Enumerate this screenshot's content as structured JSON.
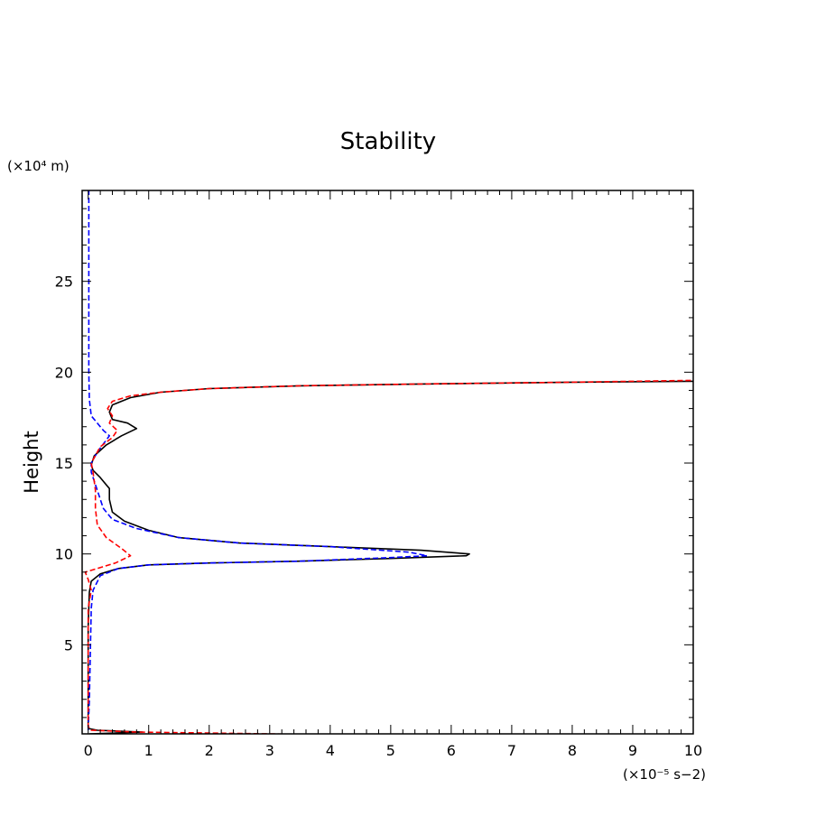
{
  "chart_data": {
    "type": "line",
    "title": "Stability",
    "ylabel": "Height",
    "xlabel": "",
    "x_units": "(×10⁻⁵ s−2)",
    "y_units": "(×10⁴ m)",
    "xlim": [
      -0.1,
      10
    ],
    "ylim": [
      0.1,
      30
    ],
    "x_ticks": [
      "0",
      "1",
      "2",
      "3",
      "4",
      "5",
      "6",
      "7",
      "8",
      "9",
      "10"
    ],
    "y_ticks": [
      "5",
      "10",
      "15",
      "20",
      "25"
    ],
    "grid": false,
    "legend": "none",
    "series": [
      {
        "color": "#000000",
        "dash": "solid",
        "points": [
          [
            0.02,
            0.1
          ],
          [
            0.9,
            0.2
          ],
          [
            0.15,
            0.3
          ],
          [
            0.0,
            0.4
          ],
          [
            0.0,
            6.0
          ],
          [
            0.02,
            7.9
          ],
          [
            0.05,
            8.5
          ],
          [
            0.2,
            8.9
          ],
          [
            0.5,
            9.2
          ],
          [
            1.0,
            9.4
          ],
          [
            2.0,
            9.5
          ],
          [
            3.5,
            9.6
          ],
          [
            5.0,
            9.75
          ],
          [
            6.25,
            9.9
          ],
          [
            6.3,
            10.0
          ],
          [
            5.5,
            10.2
          ],
          [
            4.0,
            10.4
          ],
          [
            2.5,
            10.6
          ],
          [
            1.5,
            10.9
          ],
          [
            1.0,
            11.3
          ],
          [
            0.6,
            11.8
          ],
          [
            0.4,
            12.3
          ],
          [
            0.35,
            13.0
          ],
          [
            0.35,
            13.6
          ],
          [
            0.3,
            13.8
          ],
          [
            0.2,
            14.2
          ],
          [
            0.08,
            14.6
          ],
          [
            0.05,
            14.9
          ],
          [
            0.1,
            15.4
          ],
          [
            0.3,
            16.0
          ],
          [
            0.55,
            16.5
          ],
          [
            0.8,
            16.9
          ],
          [
            0.65,
            17.2
          ],
          [
            0.4,
            17.4
          ],
          [
            0.35,
            17.8
          ],
          [
            0.4,
            18.2
          ],
          [
            0.7,
            18.6
          ],
          [
            1.2,
            18.9
          ],
          [
            2.0,
            19.1
          ],
          [
            3.5,
            19.25
          ],
          [
            5.5,
            19.35
          ],
          [
            8.0,
            19.45
          ],
          [
            10.0,
            19.5
          ]
        ]
      },
      {
        "color": "#0000ff",
        "dash": "dashed",
        "points": [
          [
            0.0,
            0.3
          ],
          [
            0.02,
            2.0
          ],
          [
            0.05,
            7.0
          ],
          [
            0.08,
            8.0
          ],
          [
            0.2,
            8.8
          ],
          [
            0.5,
            9.2
          ],
          [
            1.0,
            9.4
          ],
          [
            2.0,
            9.5
          ],
          [
            3.5,
            9.6
          ],
          [
            5.0,
            9.8
          ],
          [
            5.6,
            9.9
          ],
          [
            5.3,
            10.1
          ],
          [
            4.0,
            10.4
          ],
          [
            2.5,
            10.6
          ],
          [
            1.5,
            10.9
          ],
          [
            0.8,
            11.4
          ],
          [
            0.4,
            11.9
          ],
          [
            0.25,
            12.5
          ],
          [
            0.15,
            13.5
          ],
          [
            0.05,
            14.5
          ],
          [
            0.05,
            15.0
          ],
          [
            0.15,
            15.6
          ],
          [
            0.35,
            16.5
          ],
          [
            0.25,
            16.8
          ],
          [
            0.15,
            17.2
          ],
          [
            0.05,
            17.6
          ],
          [
            0.02,
            18.5
          ],
          [
            0.01,
            20.0
          ],
          [
            0.01,
            30.0
          ]
        ]
      },
      {
        "color": "#ff0000",
        "dash": "dashed",
        "points": [
          [
            4.7,
            0.0
          ],
          [
            3.0,
            0.1
          ],
          [
            0.8,
            0.2
          ],
          [
            0.05,
            0.3
          ],
          [
            0.0,
            0.5
          ],
          [
            0.0,
            7.0
          ],
          [
            0.05,
            8.0
          ],
          [
            0.0,
            8.6
          ],
          [
            -0.05,
            9.0
          ],
          [
            0.15,
            9.2
          ],
          [
            0.45,
            9.5
          ],
          [
            0.7,
            9.9
          ],
          [
            0.55,
            10.3
          ],
          [
            0.3,
            10.9
          ],
          [
            0.15,
            11.6
          ],
          [
            0.12,
            12.5
          ],
          [
            0.12,
            13.5
          ],
          [
            0.08,
            14.5
          ],
          [
            0.05,
            15.0
          ],
          [
            0.2,
            15.9
          ],
          [
            0.4,
            16.4
          ],
          [
            0.48,
            16.8
          ],
          [
            0.35,
            17.2
          ],
          [
            0.4,
            17.6
          ],
          [
            0.32,
            18.0
          ],
          [
            0.4,
            18.4
          ],
          [
            0.7,
            18.7
          ],
          [
            1.2,
            18.9
          ],
          [
            2.0,
            19.1
          ],
          [
            3.5,
            19.25
          ],
          [
            5.5,
            19.35
          ],
          [
            8.0,
            19.45
          ],
          [
            10.0,
            19.55
          ]
        ]
      }
    ]
  }
}
